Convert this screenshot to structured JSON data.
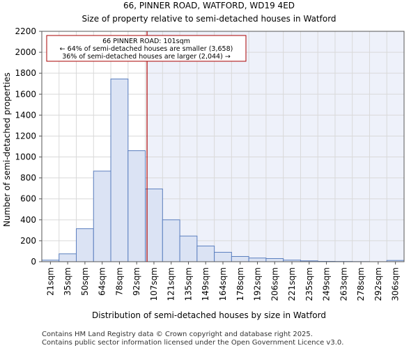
{
  "chart_data": {
    "type": "bar",
    "title": "66, PINNER ROAD, WATFORD, WD19 4ED",
    "subtitle": "Size of property relative to semi-detached houses in Watford",
    "xlabel": "Distribution of semi-detached houses by size in Watford",
    "ylabel": "Number of semi-detached properties",
    "ylim": [
      0,
      2200
    ],
    "yticks": [
      0,
      200,
      400,
      600,
      800,
      1000,
      1200,
      1400,
      1600,
      1800,
      2000,
      2200
    ],
    "grid": true,
    "categories": [
      "21sqm",
      "35sqm",
      "50sqm",
      "64sqm",
      "78sqm",
      "92sqm",
      "107sqm",
      "121sqm",
      "135sqm",
      "149sqm",
      "164sqm",
      "178sqm",
      "192sqm",
      "206sqm",
      "221sqm",
      "235sqm",
      "249sqm",
      "263sqm",
      "278sqm",
      "292sqm",
      "306sqm"
    ],
    "values": [
      15,
      75,
      315,
      865,
      1745,
      1060,
      695,
      400,
      245,
      150,
      90,
      50,
      35,
      30,
      15,
      8,
      3,
      2,
      1,
      0,
      12
    ],
    "marker": {
      "value_sqm": 101,
      "line_lines": [
        "66 PINNER ROAD: 101sqm",
        "← 64% of semi-detached houses are smaller (3,658)",
        "36% of semi-detached houses are larger (2,044) →"
      ],
      "line_color": "#aa0000"
    },
    "colors": {
      "bar_fill": "#dbe3f4",
      "bar_edge": "#5b7fbf",
      "highlight_bg": "#eef1fa",
      "grid": "#d9d9d9"
    }
  },
  "footer": {
    "line1": "Contains HM Land Registry data © Crown copyright and database right 2025.",
    "line2": "Contains public sector information licensed under the Open Government Licence v3.0."
  }
}
